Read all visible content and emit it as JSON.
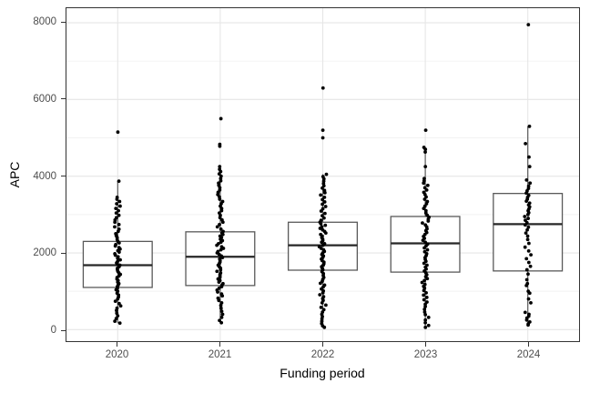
{
  "chart_data": {
    "type": "boxplot",
    "title": "",
    "xlabel": "Funding period",
    "ylabel": "APC",
    "categories": [
      "2020",
      "2021",
      "2022",
      "2023",
      "2024"
    ],
    "y_tick_labels": [
      "0",
      "2000",
      "4000",
      "6000",
      "8000"
    ],
    "y_ticks": [
      0,
      2000,
      4000,
      6000,
      8000
    ],
    "y_minor_ticks": [
      1000,
      3000,
      5000,
      7000
    ],
    "ylim": [
      -300,
      8380
    ],
    "grid": "major-and-minor-horizontal, major-vertical-at-categories",
    "legend": "none",
    "colors": {
      "background": "#ffffff",
      "panel_border": "#333333",
      "grid_major": "#e6e6e6",
      "grid_minor": "#f2f2f2",
      "box_border": "#595959",
      "box_fill": "#ffffff",
      "median_line": "#262626",
      "point": "#000000",
      "tick_label": "#4d4d4d",
      "axis_title": "#000000"
    },
    "series": [
      {
        "category": "2020",
        "q1": 1100,
        "median": 1680,
        "q3": 2300,
        "whisker_low": 170,
        "whisker_high": 3870,
        "outliers": [
          5150
        ],
        "points": [
          5150,
          3870,
          3450,
          3400,
          3340,
          3280,
          3220,
          3160,
          3100,
          3040,
          2980,
          2920,
          2860,
          2800,
          2740,
          2680,
          2620,
          2560,
          2500,
          2450,
          2400,
          2350,
          2300,
          2260,
          2220,
          2180,
          2140,
          2100,
          2060,
          2020,
          1980,
          1940,
          1900,
          1860,
          1820,
          1780,
          1740,
          1700,
          1680,
          1640,
          1600,
          1560,
          1520,
          1480,
          1440,
          1400,
          1360,
          1320,
          1280,
          1240,
          1200,
          1160,
          1120,
          1080,
          1040,
          1000,
          950,
          900,
          850,
          800,
          740,
          680,
          620,
          560,
          500,
          430,
          360,
          290,
          220,
          170
        ]
      },
      {
        "category": "2021",
        "q1": 1150,
        "median": 1900,
        "q3": 2550,
        "whisker_low": 180,
        "whisker_high": 4250,
        "outliers": [
          4780,
          4830,
          5500
        ],
        "points": [
          5500,
          4830,
          4780,
          4250,
          4180,
          4120,
          4060,
          4000,
          3940,
          3880,
          3820,
          3760,
          3700,
          3640,
          3580,
          3520,
          3460,
          3400,
          3340,
          3280,
          3220,
          3160,
          3100,
          3040,
          2980,
          2920,
          2860,
          2800,
          2740,
          2680,
          2620,
          2560,
          2520,
          2480,
          2440,
          2400,
          2360,
          2320,
          2280,
          2240,
          2200,
          2160,
          2120,
          2080,
          2040,
          2000,
          1960,
          1920,
          1880,
          1840,
          1800,
          1760,
          1720,
          1680,
          1640,
          1600,
          1560,
          1520,
          1480,
          1440,
          1400,
          1360,
          1320,
          1280,
          1240,
          1200,
          1160,
          1120,
          1080,
          1030,
          980,
          930,
          880,
          820,
          760,
          700,
          630,
          560,
          480,
          400,
          320,
          240,
          180
        ]
      },
      {
        "category": "2022",
        "q1": 1550,
        "median": 2200,
        "q3": 2800,
        "whisker_low": 60,
        "whisker_high": 4050,
        "outliers": [
          5000,
          5200,
          6300
        ],
        "points": [
          6300,
          5200,
          5000,
          4050,
          3990,
          3930,
          3870,
          3810,
          3750,
          3690,
          3630,
          3570,
          3510,
          3450,
          3390,
          3330,
          3270,
          3210,
          3150,
          3090,
          3030,
          2970,
          2910,
          2850,
          2800,
          2760,
          2720,
          2680,
          2640,
          2600,
          2560,
          2520,
          2480,
          2440,
          2400,
          2360,
          2320,
          2280,
          2240,
          2200,
          2160,
          2120,
          2080,
          2040,
          2000,
          1960,
          1920,
          1880,
          1840,
          1800,
          1760,
          1720,
          1680,
          1640,
          1600,
          1560,
          1510,
          1460,
          1410,
          1360,
          1310,
          1260,
          1210,
          1160,
          1110,
          1060,
          1010,
          960,
          910,
          860,
          810,
          760,
          700,
          640,
          580,
          520,
          460,
          400,
          340,
          280,
          220,
          160,
          100,
          60
        ]
      },
      {
        "category": "2023",
        "q1": 1500,
        "median": 2250,
        "q3": 2950,
        "whisker_low": 60,
        "whisker_high": 4750,
        "outliers": [
          5200
        ],
        "points": [
          5200,
          4750,
          4700,
          4630,
          4250,
          3940,
          3880,
          3820,
          3760,
          3700,
          3640,
          3580,
          3520,
          3460,
          3400,
          3340,
          3280,
          3220,
          3160,
          3100,
          3040,
          2980,
          2930,
          2880,
          2830,
          2780,
          2730,
          2680,
          2630,
          2580,
          2530,
          2480,
          2430,
          2380,
          2330,
          2280,
          2230,
          2180,
          2130,
          2080,
          2030,
          1980,
          1930,
          1880,
          1830,
          1780,
          1730,
          1680,
          1630,
          1580,
          1530,
          1480,
          1430,
          1380,
          1330,
          1280,
          1230,
          1180,
          1130,
          1080,
          1020,
          960,
          900,
          840,
          780,
          720,
          660,
          600,
          530,
          460,
          390,
          320,
          250,
          180,
          110,
          60
        ]
      },
      {
        "category": "2024",
        "q1": 1530,
        "median": 2750,
        "q3": 3550,
        "whisker_low": 120,
        "whisker_high": 5300,
        "outliers": [
          7950
        ],
        "points": [
          7950,
          5300,
          4850,
          4500,
          4250,
          3900,
          3820,
          3740,
          3680,
          3620,
          3560,
          3500,
          3450,
          3400,
          3350,
          3300,
          3250,
          3200,
          3150,
          3100,
          3050,
          3000,
          2950,
          2900,
          2850,
          2790,
          2730,
          2670,
          2600,
          2520,
          2440,
          2350,
          2250,
          2150,
          2050,
          1950,
          1850,
          1750,
          1650,
          1560,
          1450,
          1300,
          1200,
          1150,
          1000,
          950,
          800,
          700,
          450,
          400,
          350,
          300,
          250,
          200,
          150,
          120
        ]
      }
    ]
  }
}
